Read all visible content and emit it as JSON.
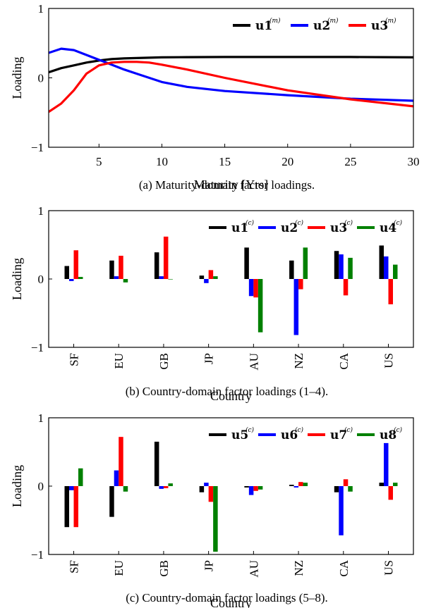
{
  "chart_data": [
    {
      "type": "line",
      "caption": "(a)   Maturity-domain factor loadings.",
      "xlabel": "Maturity [Yrs]",
      "ylabel": "Loading",
      "xlim": [
        1,
        30
      ],
      "ylim": [
        -1,
        1
      ],
      "xticks": [
        5,
        10,
        15,
        20,
        25,
        30
      ],
      "yticks": [
        -1,
        0,
        1
      ],
      "ytick_labels": [
        "−1",
        "0",
        "1"
      ],
      "legend_position": "top-right",
      "legend_superscript": "(m)",
      "x": [
        1,
        2,
        3,
        4,
        5,
        6,
        7,
        8,
        9,
        10,
        12,
        15,
        20,
        25,
        30
      ],
      "series": [
        {
          "name": "u1",
          "color": "#000000",
          "values": [
            0.08,
            0.14,
            0.18,
            0.22,
            0.25,
            0.27,
            0.28,
            0.285,
            0.29,
            0.295,
            0.298,
            0.3,
            0.3,
            0.3,
            0.295
          ]
        },
        {
          "name": "u2",
          "color": "#0000ff",
          "values": [
            0.36,
            0.42,
            0.4,
            0.33,
            0.26,
            0.19,
            0.12,
            0.06,
            0.0,
            -0.06,
            -0.13,
            -0.19,
            -0.25,
            -0.3,
            -0.33
          ]
        },
        {
          "name": "u3",
          "color": "#ff0000",
          "values": [
            -0.49,
            -0.37,
            -0.18,
            0.06,
            0.18,
            0.22,
            0.23,
            0.23,
            0.22,
            0.19,
            0.12,
            0.0,
            -0.18,
            -0.31,
            -0.41
          ]
        }
      ]
    },
    {
      "type": "bar",
      "caption": "(b)   Country-domain factor loadings (1–4).",
      "xlabel": "Country",
      "ylabel": "Loading",
      "ylim": [
        -1,
        1
      ],
      "yticks": [
        -1,
        0,
        1
      ],
      "ytick_labels": [
        "−1",
        "0",
        "1"
      ],
      "legend_position": "top-right",
      "legend_superscript": "(c)",
      "categories": [
        "SF",
        "EU",
        "GB",
        "JP",
        "AU",
        "NZ",
        "CA",
        "US"
      ],
      "series": [
        {
          "name": "u1",
          "color": "#000000",
          "values": [
            0.19,
            0.27,
            0.39,
            0.05,
            0.46,
            0.27,
            0.41,
            0.49
          ]
        },
        {
          "name": "u2",
          "color": "#0000ff",
          "values": [
            -0.03,
            0.04,
            0.04,
            -0.06,
            -0.25,
            -0.82,
            0.36,
            0.33
          ]
        },
        {
          "name": "u3",
          "color": "#ff0000",
          "values": [
            0.42,
            0.34,
            0.62,
            0.13,
            -0.27,
            -0.15,
            -0.24,
            -0.37
          ]
        },
        {
          "name": "u4",
          "color": "#008000",
          "values": [
            0.03,
            -0.05,
            0.0,
            0.04,
            -0.78,
            0.46,
            0.31,
            0.21
          ]
        }
      ]
    },
    {
      "type": "bar",
      "caption": "(c)   Country-domain factor loadings (5–8).",
      "xlabel": "Country",
      "ylabel": "Loading",
      "ylim": [
        -1,
        1
      ],
      "yticks": [
        -1,
        0,
        1
      ],
      "ytick_labels": [
        "−1",
        "0",
        "1"
      ],
      "legend_position": "top-right",
      "legend_superscript": "(c)",
      "categories": [
        "SF",
        "EU",
        "GB",
        "JP",
        "AU",
        "NZ",
        "CA",
        "US"
      ],
      "series": [
        {
          "name": "u5",
          "color": "#000000",
          "values": [
            -0.6,
            -0.45,
            0.65,
            -0.09,
            -0.02,
            0.02,
            -0.09,
            0.05
          ]
        },
        {
          "name": "u6",
          "color": "#0000ff",
          "values": [
            -0.06,
            0.23,
            -0.04,
            0.05,
            -0.13,
            -0.02,
            -0.72,
            0.63
          ]
        },
        {
          "name": "u7",
          "color": "#ff0000",
          "values": [
            -0.6,
            0.72,
            -0.03,
            -0.23,
            -0.07,
            0.06,
            0.1,
            -0.2
          ]
        },
        {
          "name": "u8",
          "color": "#008000",
          "values": [
            0.26,
            -0.08,
            0.04,
            -0.96,
            -0.05,
            0.05,
            -0.08,
            0.05
          ]
        }
      ]
    }
  ]
}
